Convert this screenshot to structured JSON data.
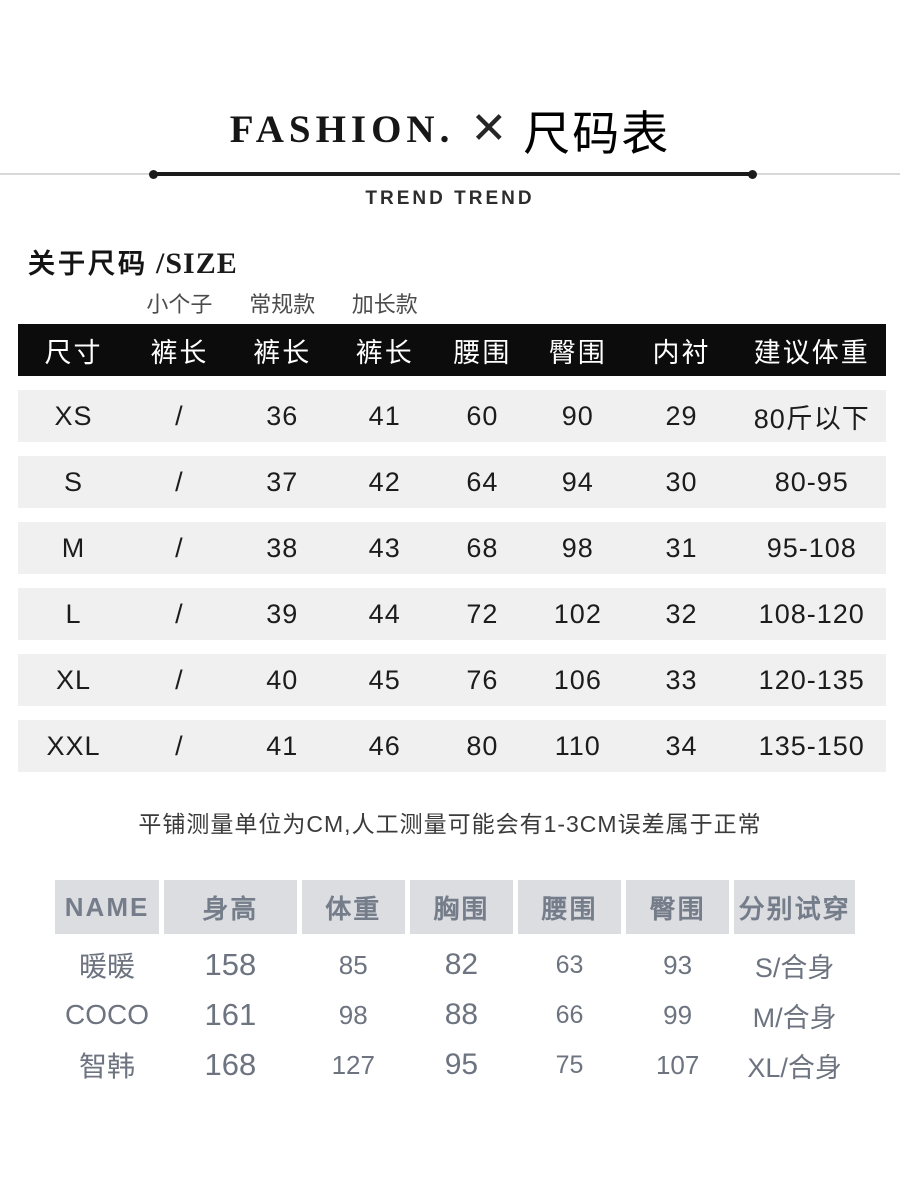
{
  "header": {
    "brand": "FASHION.",
    "cross": "✕",
    "title": "尺码表",
    "subtitle": "TREND TREND"
  },
  "section": {
    "heading_cn": "关于尺码",
    "heading_en": "/SIZE",
    "variant_labels": [
      "小个子",
      "常规款",
      "加长款"
    ]
  },
  "size_table": {
    "columns": [
      "尺寸",
      "裤长",
      "裤长",
      "裤长",
      "腰围",
      "臀围",
      "内衬",
      "建议体重"
    ],
    "rows": [
      [
        "XS",
        "/",
        "36",
        "41",
        "60",
        "90",
        "29",
        "80斤以下"
      ],
      [
        "S",
        "/",
        "37",
        "42",
        "64",
        "94",
        "30",
        "80-95"
      ],
      [
        "M",
        "/",
        "38",
        "43",
        "68",
        "98",
        "31",
        "95-108"
      ],
      [
        "L",
        "/",
        "39",
        "44",
        "72",
        "102",
        "32",
        "108-120"
      ],
      [
        "XL",
        "/",
        "40",
        "45",
        "76",
        "106",
        "33",
        "120-135"
      ],
      [
        "XXL",
        "/",
        "41",
        "46",
        "80",
        "110",
        "34",
        "135-150"
      ]
    ]
  },
  "note": "平铺测量单位为CM,人工测量可能会有1-3CM误差属于正常",
  "model_table": {
    "columns": [
      "NAME",
      "身高",
      "体重",
      "胸围",
      "腰围",
      "臀围",
      "分别试穿"
    ],
    "rows": [
      [
        "暖暖",
        "158",
        "85",
        "82",
        "63",
        "93",
        "S/合身"
      ],
      [
        "COCO",
        "161",
        "98",
        "88",
        "66",
        "99",
        "M/合身"
      ],
      [
        "智韩",
        "168",
        "127",
        "95",
        "75",
        "107",
        "XL/合身"
      ]
    ]
  },
  "colors": {
    "size_header_bg": "#0c0c0c",
    "size_header_text": "#ffffff",
    "size_row_bg": "#f0f0f0",
    "model_header_bg": "#dcdde1",
    "model_text": "#6d7480",
    "divider_dark": "#1b1b1b",
    "divider_light": "#d8d8d8"
  }
}
